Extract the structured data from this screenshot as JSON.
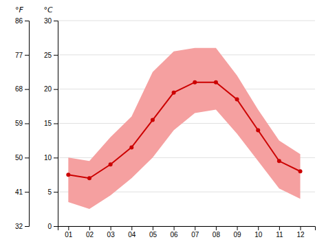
{
  "chart_data": {
    "type": "line",
    "x": [
      1,
      2,
      3,
      4,
      5,
      6,
      7,
      8,
      9,
      10,
      11,
      12
    ],
    "xlim": [
      0.5,
      12.7
    ],
    "xticks": [
      {
        "value": 1,
        "label": "01"
      },
      {
        "value": 2,
        "label": "02"
      },
      {
        "value": 3,
        "label": "03"
      },
      {
        "value": 4,
        "label": "04"
      },
      {
        "value": 5,
        "label": "05"
      },
      {
        "value": 6,
        "label": "06"
      },
      {
        "value": 7,
        "label": "07"
      },
      {
        "value": 8,
        "label": "08"
      },
      {
        "value": 9,
        "label": "09"
      },
      {
        "value": 10,
        "label": "10"
      },
      {
        "value": 11,
        "label": "11"
      },
      {
        "value": 12,
        "label": "12"
      }
    ],
    "ylabel": "°C",
    "ylim": [
      0,
      30
    ],
    "yticks": [
      0,
      5,
      10,
      15,
      20,
      25,
      30
    ],
    "y2label": "°F",
    "y2lim": [
      32,
      86
    ],
    "y2ticks": [
      32,
      41,
      50,
      59,
      68,
      77,
      86
    ],
    "grid": true,
    "series": [
      {
        "type": "band",
        "color": "#f5a0a0",
        "low": [
          3.5,
          2.5,
          4.5,
          7.0,
          10.0,
          14.0,
          16.5,
          17.0,
          13.5,
          9.5,
          5.5,
          4.0
        ],
        "high": [
          10.0,
          9.5,
          13.0,
          16.0,
          22.5,
          25.5,
          26.0,
          26.0,
          22.0,
          17.0,
          12.5,
          10.5
        ]
      },
      {
        "type": "line",
        "color": "#cc0000",
        "marker": "circle",
        "values": [
          7.5,
          7.0,
          9.0,
          11.5,
          15.5,
          19.5,
          21.0,
          21.0,
          18.5,
          14.0,
          9.5,
          8.0
        ]
      }
    ]
  }
}
